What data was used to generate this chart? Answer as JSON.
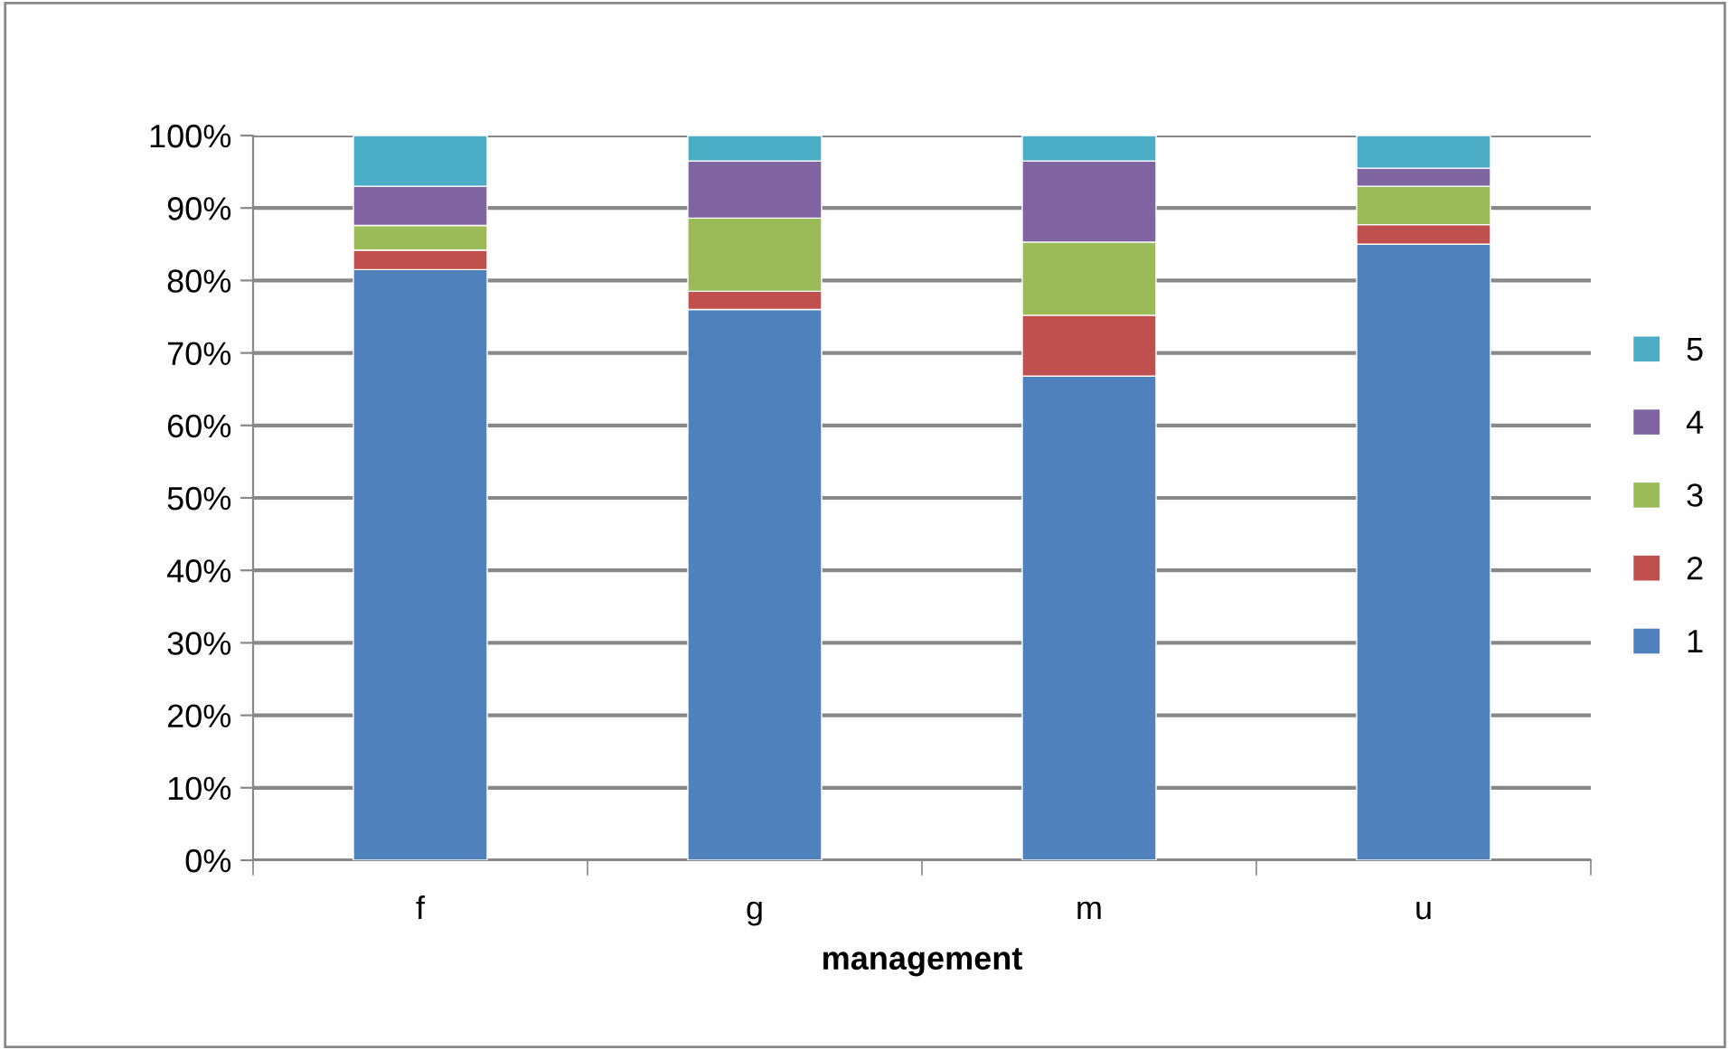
{
  "chart_data": {
    "type": "bar",
    "stacked": true,
    "xlabel": "management",
    "categories": [
      "f",
      "g",
      "m",
      "u"
    ],
    "series": [
      {
        "name": "1",
        "color": "#4f81bd",
        "values": [
          81.5,
          76.0,
          66.8,
          85.0
        ]
      },
      {
        "name": "2",
        "color": "#c0504d",
        "values": [
          2.7,
          2.5,
          8.4,
          2.7
        ]
      },
      {
        "name": "3",
        "color": "#9bbb59",
        "values": [
          3.4,
          10.1,
          10.1,
          5.3
        ]
      },
      {
        "name": "4",
        "color": "#8064a2",
        "values": [
          5.4,
          7.9,
          11.2,
          2.5
        ]
      },
      {
        "name": "5",
        "color": "#4bacc6",
        "values": [
          7.0,
          3.5,
          3.5,
          4.5
        ]
      }
    ],
    "ylim": [
      0,
      100
    ],
    "yticks": [
      {
        "value": 0,
        "label": "0%"
      },
      {
        "value": 10,
        "label": "10%"
      },
      {
        "value": 20,
        "label": "20%"
      },
      {
        "value": 30,
        "label": "30%"
      },
      {
        "value": 40,
        "label": "40%"
      },
      {
        "value": 50,
        "label": "50%"
      },
      {
        "value": 60,
        "label": "60%"
      },
      {
        "value": 70,
        "label": "70%"
      },
      {
        "value": 80,
        "label": "80%"
      },
      {
        "value": 90,
        "label": "90%"
      },
      {
        "value": 100,
        "label": "100%"
      }
    ],
    "grid": "y",
    "legend": "right"
  }
}
